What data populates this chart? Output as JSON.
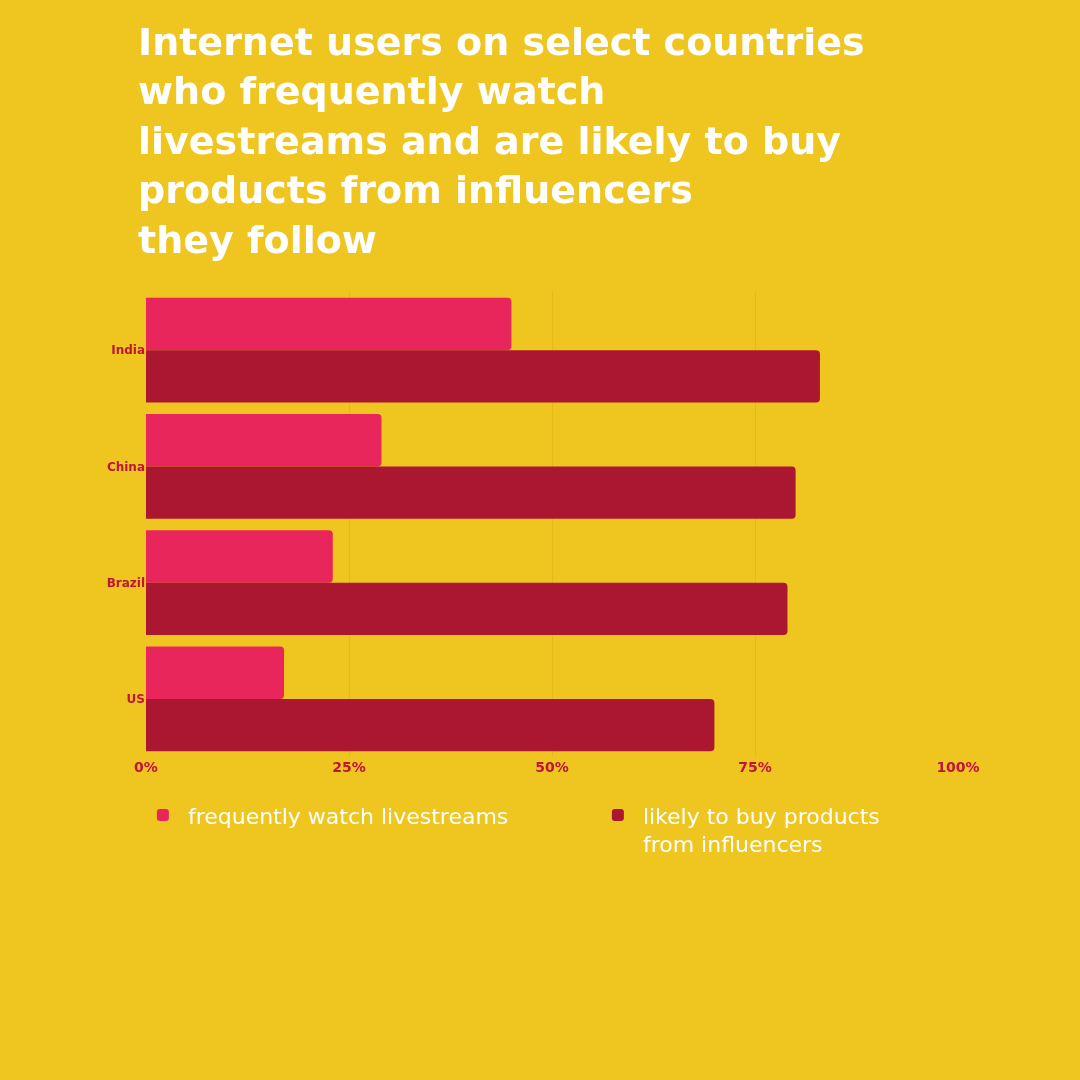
{
  "chart_data": {
    "type": "bar",
    "orientation": "horizontal",
    "title": "Internet users on select countries\nwho frequently watch\nlivestreams and are likely to buy\nproducts from influencers\nthey follow",
    "categories": [
      "India",
      "China",
      "Brazil",
      "US"
    ],
    "series": [
      {
        "name": "frequently watch livestreams",
        "color": "#e8265c",
        "values": [
          45,
          29,
          23,
          17
        ]
      },
      {
        "name": "likely to buy products\nfrom influencers",
        "color": "#ab1631",
        "values": [
          83,
          80,
          79,
          70
        ]
      }
    ],
    "xlim": [
      0,
      100
    ],
    "xticks": [
      {
        "value": 0,
        "label": "0%"
      },
      {
        "value": 25,
        "label": "25%"
      },
      {
        "value": 50,
        "label": "50%"
      },
      {
        "value": 75,
        "label": "75%"
      },
      {
        "value": 100,
        "label": "100%"
      }
    ],
    "grid": "x",
    "legend": "bottom"
  }
}
